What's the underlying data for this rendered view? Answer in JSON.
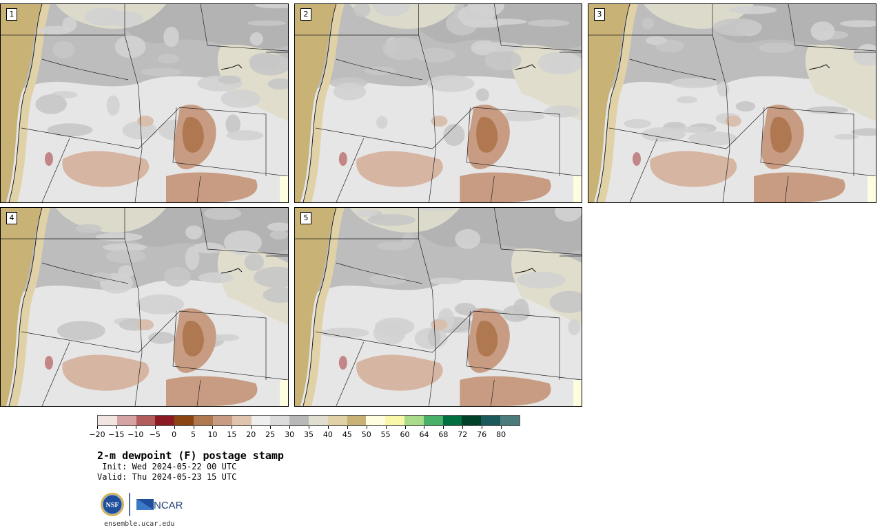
{
  "panels": [
    {
      "number": "1"
    },
    {
      "number": "2"
    },
    {
      "number": "3"
    },
    {
      "number": "4"
    },
    {
      "number": "5"
    }
  ],
  "colorbar": {
    "colors": [
      "#f2e4e1",
      "#d4a2a2",
      "#b35c5e",
      "#8b1a22",
      "#8b4513",
      "#b07850",
      "#c89c82",
      "#e0c4b0",
      "#eeeeee",
      "#dcdcdc",
      "#b8b8b8",
      "#e0dfcf",
      "#e0d2a6",
      "#c8b275",
      "#fffde0",
      "#f8f8a8",
      "#a8dc8c",
      "#48b068",
      "#007040",
      "#004028",
      "#1a5a5a",
      "#4d7b7b"
    ],
    "tick_labels": [
      "−20",
      "−15",
      "−10",
      "−5",
      "0",
      "5",
      "10",
      "15",
      "20",
      "25",
      "30",
      "35",
      "40",
      "45",
      "50",
      "55",
      "60",
      "64",
      "68",
      "72",
      "76",
      "80"
    ]
  },
  "title": "2-m dewpoint (F) postage stamp",
  "init": " Init: Wed 2024-05-22 00 UTC",
  "valid": "Valid: Thu 2024-05-23 15 UTC",
  "logos": {
    "nsf": "NSF",
    "ncar": "NCAR"
  },
  "website": "ensemble.ucar.edu"
}
